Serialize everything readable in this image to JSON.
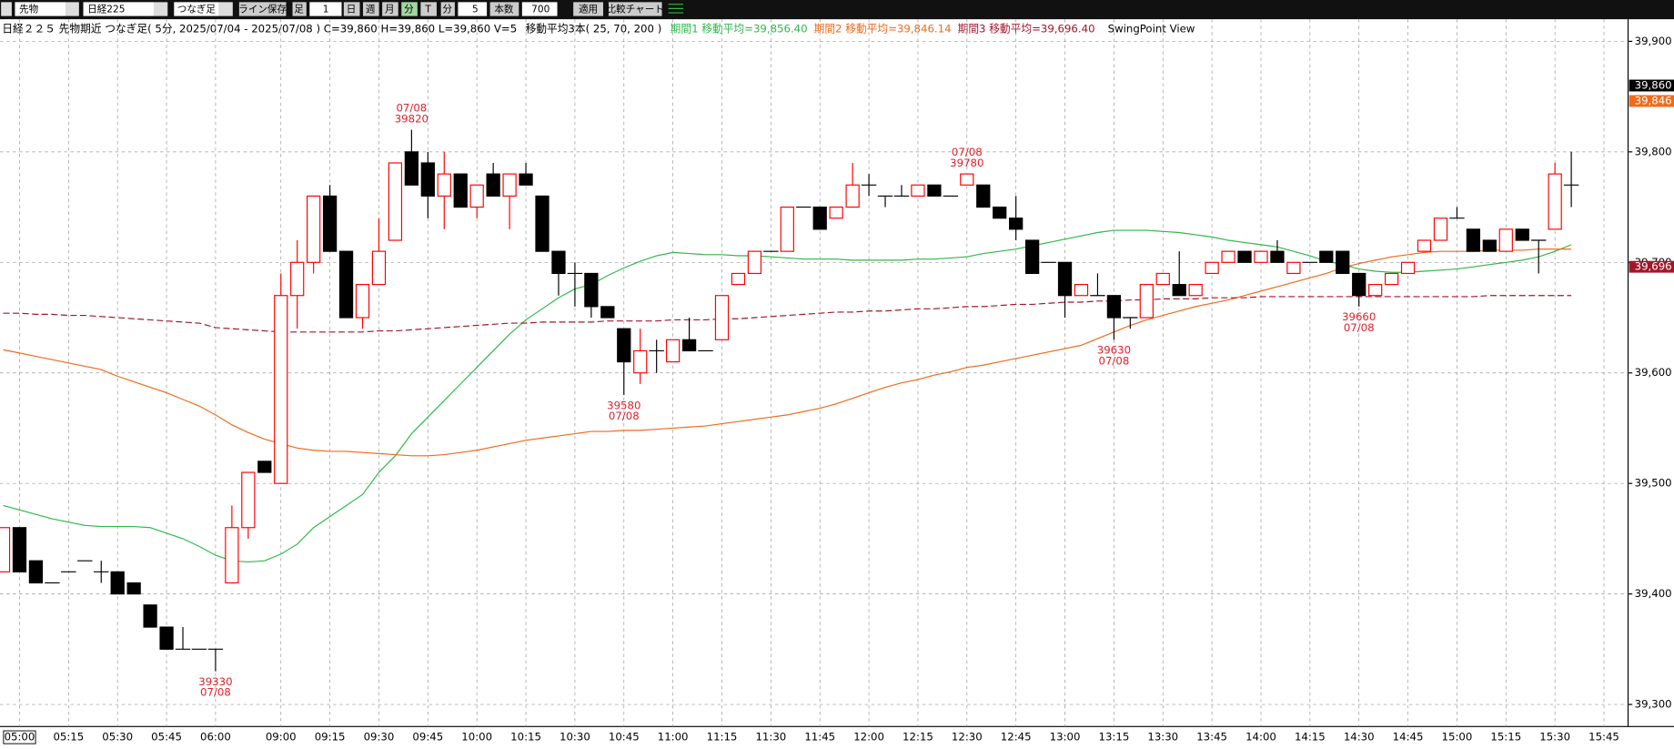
{
  "toolbar": {
    "market": "先物",
    "index": "日経225",
    "bar_type": "つなぎ足",
    "save_line": "ライン保存",
    "bar_label": "足",
    "bar_count": "1",
    "day": "日",
    "week": "週",
    "month": "月",
    "minute": "分",
    "tick": "T",
    "interval_unit": "分",
    "interval": "5",
    "count_label": "本数",
    "count": "700",
    "apply": "適用",
    "compare": "比較チャート"
  },
  "chart_data": {
    "type": "candlestick",
    "title": "日経２２５ 先物期近 つなぎ足( 5分, 2025/07/04 - 2025/07/08 ) C=39,860 H=39,860 L=39,860 V=5",
    "subtitle": "移動平均3本( 25, 70, 200 )",
    "view_label": "SwingPoint View",
    "categories": [
      null,
      "05:00",
      null,
      null,
      "05:15",
      null,
      null,
      "05:30",
      null,
      null,
      "05:45",
      null,
      null,
      "06:00",
      null,
      null,
      null,
      "09:00",
      null,
      null,
      "09:15",
      null,
      null,
      "09:30",
      null,
      null,
      "09:45",
      null,
      null,
      "10:00",
      null,
      null,
      "10:15",
      null,
      null,
      "10:30",
      null,
      null,
      "10:45",
      null,
      null,
      "11:00",
      null,
      null,
      "11:15",
      null,
      null,
      "11:30",
      null,
      null,
      "11:45",
      null,
      null,
      "12:00",
      null,
      null,
      "12:15",
      null,
      null,
      "12:30",
      null,
      null,
      "12:45",
      null,
      null,
      "13:00",
      null,
      null,
      "13:15",
      null,
      null,
      "13:30",
      null,
      null,
      "13:45",
      null,
      null,
      "14:00",
      null,
      null,
      "14:15",
      null,
      null,
      "14:30",
      null,
      null,
      "14:45",
      null,
      null,
      "15:00",
      null,
      null,
      "15:15",
      null,
      null,
      "15:30",
      null,
      null,
      "15:45"
    ],
    "open": [
      39420,
      39460,
      39430,
      39410,
      39420,
      39430,
      39420,
      39420,
      39410,
      39390,
      39370,
      39350,
      39350,
      39350,
      39410,
      39460,
      39520,
      39500,
      39670,
      39700,
      39760,
      39710,
      39650,
      39680,
      39720,
      39800,
      39790,
      39760,
      39780,
      39750,
      39780,
      39760,
      39780,
      39760,
      39710,
      39690,
      39690,
      39660,
      39640,
      39600,
      39620,
      39610,
      39630,
      39620,
      39630,
      39680,
      39690,
      39710,
      39710,
      39750,
      39750,
      39740,
      39750,
      39770,
      39760,
      39760,
      39760,
      39770,
      39760,
      39770,
      39770,
      39750,
      39740,
      39720,
      39700,
      39700,
      39670,
      39670,
      39670,
      39650,
      39650,
      39680,
      39680,
      39670,
      39690,
      39700,
      39710,
      39700,
      39710,
      39690,
      39700,
      39710,
      39710,
      39690,
      39670,
      39680,
      39690,
      39710,
      39720,
      39740,
      39730,
      39720,
      39710,
      39730,
      39720,
      39730,
      39770,
      null,
      null
    ],
    "high": [
      39460,
      39460,
      39430,
      39410,
      39420,
      39430,
      39430,
      39420,
      39410,
      39390,
      39370,
      39370,
      39350,
      39350,
      39480,
      39510,
      39520,
      39690,
      39720,
      39760,
      39770,
      39710,
      39680,
      39740,
      39790,
      39820,
      39800,
      39800,
      39780,
      39770,
      39790,
      39780,
      39790,
      39760,
      39710,
      39700,
      39690,
      39660,
      39640,
      39640,
      39630,
      39630,
      39650,
      39620,
      39670,
      39690,
      39710,
      39710,
      39750,
      39750,
      39750,
      39750,
      39790,
      39780,
      39760,
      39770,
      39770,
      39770,
      39760,
      39780,
      39770,
      39750,
      39760,
      39720,
      39700,
      39700,
      39680,
      39690,
      39670,
      39650,
      39680,
      39690,
      39710,
      39680,
      39700,
      39710,
      39710,
      39710,
      39720,
      39700,
      39700,
      39710,
      39710,
      39690,
      39680,
      39690,
      39700,
      39720,
      39740,
      39750,
      39730,
      39720,
      39730,
      39730,
      39720,
      39790,
      39800,
      null,
      null
    ],
    "low": [
      39420,
      39420,
      39410,
      39410,
      39420,
      39430,
      39410,
      39400,
      39400,
      39370,
      39350,
      39350,
      39350,
      39330,
      39410,
      39450,
      39510,
      39500,
      39640,
      39690,
      39710,
      39650,
      39640,
      39680,
      39720,
      39770,
      39740,
      39730,
      39750,
      39740,
      39760,
      39730,
      39770,
      39710,
      39670,
      39660,
      39650,
      39650,
      39580,
      39590,
      39600,
      39610,
      39620,
      39620,
      39630,
      39680,
      39690,
      39710,
      39710,
      39750,
      39730,
      39740,
      39750,
      39760,
      39750,
      39760,
      39760,
      39760,
      39760,
      39770,
      39750,
      39740,
      39720,
      39690,
      39700,
      39650,
      39670,
      39670,
      39630,
      39640,
      39650,
      39680,
      39670,
      39670,
      39690,
      39700,
      39700,
      39700,
      39700,
      39690,
      39700,
      39700,
      39690,
      39660,
      39670,
      39680,
      39690,
      39710,
      39720,
      39740,
      39710,
      39710,
      39710,
      39720,
      39690,
      39730,
      39750,
      null,
      null
    ],
    "close": [
      39460,
      39420,
      39410,
      39410,
      39420,
      39430,
      39420,
      39400,
      39400,
      39370,
      39350,
      39350,
      39350,
      39350,
      39460,
      39510,
      39510,
      39670,
      39700,
      39760,
      39710,
      39650,
      39680,
      39710,
      39790,
      39770,
      39760,
      39780,
      39750,
      39770,
      39760,
      39780,
      39770,
      39710,
      39690,
      39690,
      39660,
      39650,
      39610,
      39620,
      39620,
      39630,
      39620,
      39620,
      39670,
      39690,
      39710,
      39710,
      39750,
      39750,
      39730,
      39750,
      39770,
      39770,
      39760,
      39760,
      39770,
      39760,
      39760,
      39780,
      39750,
      39740,
      39730,
      39690,
      39700,
      39670,
      39680,
      39670,
      39650,
      39650,
      39680,
      39690,
      39670,
      39680,
      39700,
      39710,
      39700,
      39710,
      39700,
      39700,
      39700,
      39700,
      39690,
      39670,
      39680,
      39690,
      39700,
      39720,
      39740,
      39740,
      39710,
      39710,
      39730,
      39720,
      39720,
      39780,
      39770,
      null,
      null
    ],
    "up_color": "#ff0000",
    "down_color": "#000000",
    "high_labels": {
      "25": [
        "07/08",
        "39820"
      ],
      "59": [
        "07/08",
        "39780"
      ]
    },
    "low_labels": {
      "13": [
        "39330",
        "07/08"
      ],
      "38": [
        "39580",
        "07/08"
      ],
      "68": [
        "39630",
        "07/08"
      ],
      "83": [
        "39660",
        "07/08"
      ]
    },
    "label_color": "#e0202a",
    "series": [
      {
        "name": "期間1 移動平均=39,856.40",
        "color": "#2fb84a",
        "dash": false,
        "values": [
          39480,
          39476,
          39472,
          39468,
          39465,
          39462,
          39461,
          39461,
          39461,
          39460,
          39455,
          39450,
          39443,
          39435,
          39430,
          39429,
          39430,
          39436,
          39445,
          39460,
          39470,
          39480,
          39490,
          39510,
          39525,
          39545,
          39560,
          39575,
          39590,
          39605,
          39620,
          39635,
          39648,
          39658,
          39668,
          39676,
          39680,
          39688,
          39695,
          39701,
          39706,
          39709,
          39708,
          39707,
          39707,
          39706,
          39706,
          39705,
          39704,
          39703,
          39703,
          39703,
          39702,
          39702,
          39702,
          39702,
          39703,
          39703,
          39704,
          39705,
          39708,
          39710,
          39712,
          39715,
          39718,
          39721,
          39724,
          39727,
          39729,
          39729,
          39729,
          39728,
          39727,
          39725,
          39723,
          39720,
          39718,
          39716,
          39714,
          39710,
          39706,
          39701,
          39698,
          39694,
          39692,
          39691,
          39691,
          39692,
          39693,
          39694,
          39696,
          39698,
          39700,
          39702,
          39705,
          39710,
          39716,
          null,
          null
        ]
      },
      {
        "name": "期間2 移動平均=39,846.14",
        "color": "#f26a1b",
        "dash": false,
        "values": [
          39621,
          39618,
          39615,
          39612,
          39609,
          39606,
          39603,
          39597,
          39592,
          39587,
          39582,
          39576,
          39570,
          39562,
          39553,
          39546,
          39540,
          39536,
          39532,
          39530,
          39529,
          39529,
          39528,
          39527,
          39526,
          39525,
          39525,
          39526,
          39528,
          39530,
          39533,
          39536,
          39539,
          39541,
          39543,
          39545,
          39547,
          39547,
          39548,
          39548,
          39549,
          39550,
          39551,
          39552,
          39554,
          39556,
          39558,
          39560,
          39562,
          39565,
          39568,
          39572,
          39577,
          39582,
          39587,
          39591,
          39594,
          39598,
          39601,
          39605,
          39607,
          39610,
          39613,
          39616,
          39619,
          39622,
          39625,
          39631,
          39637,
          39643,
          39648,
          39652,
          39656,
          39660,
          39663,
          39666,
          39670,
          39674,
          39678,
          39682,
          39686,
          39690,
          39695,
          39699,
          39702,
          39705,
          39707,
          39709,
          39710,
          39710,
          39710,
          39711,
          39711,
          39711,
          39712,
          39712,
          39712,
          null,
          null
        ]
      },
      {
        "name": "期間3 移動平均=39,696.40",
        "color": "#a3162a",
        "dash": true,
        "values": [
          39654,
          39654,
          39653,
          39653,
          39652,
          39652,
          39651,
          39650,
          39649,
          39648,
          39647,
          39646,
          39645,
          39641,
          39640,
          39639,
          39638,
          39637,
          39637,
          39637,
          39637,
          39637,
          39637,
          39638,
          39638,
          39639,
          39640,
          39641,
          39642,
          39643,
          39644,
          39645,
          39645,
          39646,
          39646,
          39646,
          39646,
          39647,
          39647,
          39647,
          39647,
          39648,
          39648,
          39648,
          39649,
          39649,
          39650,
          39651,
          39652,
          39653,
          39654,
          39655,
          39655,
          39656,
          39656,
          39657,
          39658,
          39658,
          39659,
          39660,
          39660,
          39661,
          39662,
          39662,
          39663,
          39664,
          39664,
          39665,
          39665,
          39666,
          39666,
          39667,
          39667,
          39667,
          39668,
          39668,
          39668,
          39669,
          39669,
          39669,
          39669,
          39669,
          39669,
          39669,
          39669,
          39669,
          39669,
          39669,
          39669,
          39669,
          39669,
          39670,
          39670,
          39670,
          39670,
          39670,
          39670,
          null,
          null
        ]
      }
    ],
    "price_tags": [
      {
        "value": 39860,
        "label": "39,860",
        "color": "#000000"
      },
      {
        "value": 39846,
        "label": "39,846",
        "color": "#f26a1b"
      },
      {
        "value": 39696,
        "label": "39,696",
        "color": "#a3162a"
      }
    ],
    "ylim": [
      39280,
      39920
    ],
    "yticks": [
      {
        "value": 39300,
        "label": "39,300"
      },
      {
        "value": 39400,
        "label": "39,400"
      },
      {
        "value": 39500,
        "label": "39,500"
      },
      {
        "value": 39600,
        "label": "39,600"
      },
      {
        "value": 39700,
        "label": "39,700"
      },
      {
        "value": 39800,
        "label": "39,800"
      },
      {
        "value": 39900,
        "label": "39,900"
      }
    ],
    "grid": true
  }
}
